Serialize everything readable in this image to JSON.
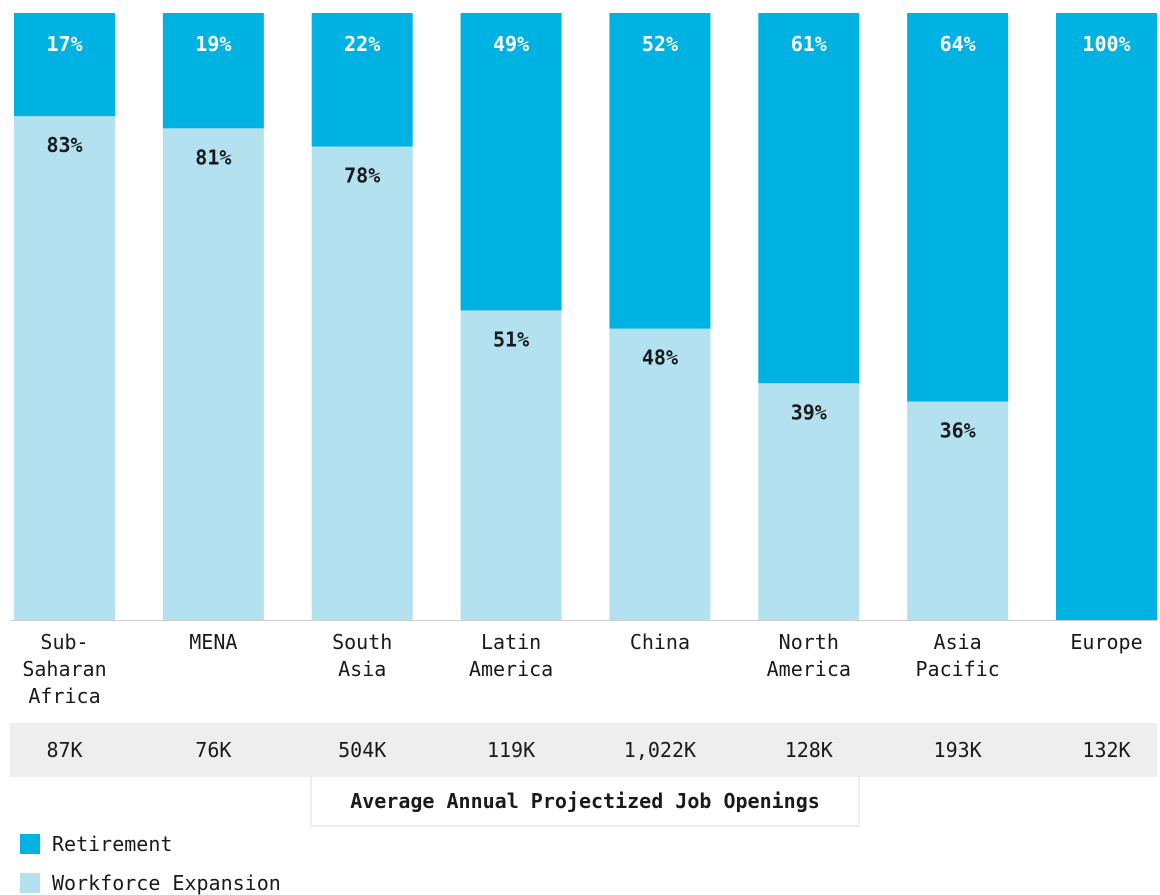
{
  "colors": {
    "retirement": "#00b2e2",
    "expansion": "#b3e1f0",
    "text_dark": "#1a1a1a",
    "text_light": "#ffffff",
    "strip_bg": "#eeeeee"
  },
  "chart_data": {
    "type": "bar",
    "stacked": true,
    "percent_scale": true,
    "ylim": [
      0,
      100
    ],
    "categories": [
      "Sub-Saharan Africa",
      "MENA",
      "South Asia",
      "Latin America",
      "China",
      "North America",
      "Asia Pacific",
      "Europe"
    ],
    "category_label_lines": [
      [
        "Sub-",
        "Saharan",
        "Africa"
      ],
      [
        "MENA"
      ],
      [
        "South",
        "Asia"
      ],
      [
        "Latin",
        "America"
      ],
      [
        "China"
      ],
      [
        "North",
        "America"
      ],
      [
        "Asia",
        "Pacific"
      ],
      [
        "Europe"
      ]
    ],
    "series": [
      {
        "name": "Retirement",
        "values": [
          17,
          19,
          22,
          49,
          52,
          61,
          64,
          100
        ],
        "labels": [
          "17%",
          "19%",
          "22%",
          "49%",
          "52%",
          "61%",
          "64%",
          "100%"
        ]
      },
      {
        "name": "Workforce Expansion",
        "values": [
          83,
          81,
          78,
          51,
          48,
          39,
          36,
          0
        ],
        "labels": [
          "83%",
          "81%",
          "78%",
          "51%",
          "48%",
          "39%",
          "36%",
          ""
        ]
      }
    ],
    "grid": false,
    "legend_position": "bottom-left"
  },
  "openings": {
    "values": [
      "87K",
      "76K",
      "504K",
      "119K",
      "1,022K",
      "128K",
      "193K",
      "132K"
    ],
    "caption": "Average Annual Projectized Job Openings"
  },
  "legend": {
    "retirement_label": "Retirement",
    "expansion_label": "Workforce Expansion"
  }
}
